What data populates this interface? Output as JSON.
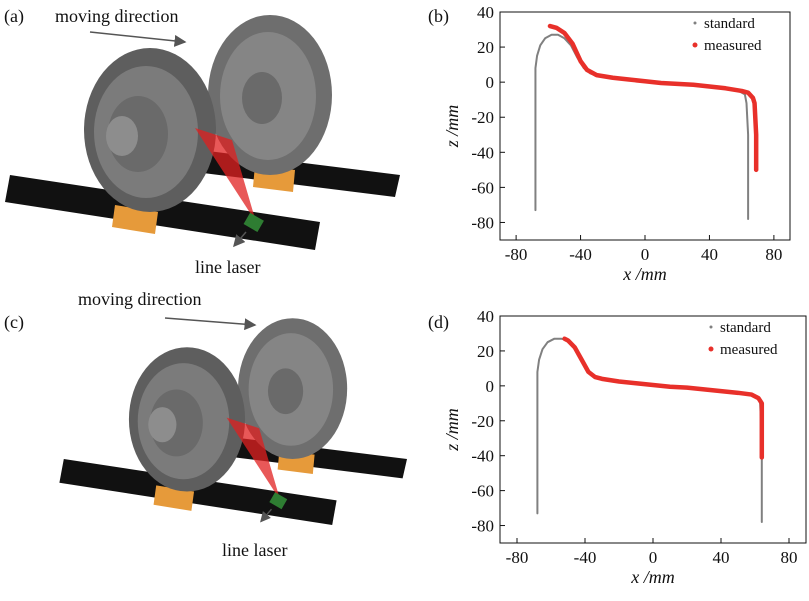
{
  "panels": [
    {
      "label": "(a)",
      "caption": "moving direction",
      "callout": "line laser"
    },
    {
      "label": "(c)",
      "caption": "moving direction",
      "callout": "line laser"
    }
  ],
  "chart_data": [
    {
      "type": "line",
      "label": "(b)",
      "xlabel": "x /mm",
      "ylabel": "z /mm",
      "xlim": [
        -90,
        90
      ],
      "ylim": [
        -90,
        40
      ],
      "xticks": [
        -80,
        -40,
        0,
        40,
        80
      ],
      "yticks": [
        -80,
        -60,
        -40,
        -20,
        0,
        20,
        40
      ],
      "legend": "upper right",
      "series": [
        {
          "name": "standard",
          "color": "#808080",
          "x": [
            -68,
            -68,
            -67,
            -65,
            -62,
            -58,
            -54,
            -50,
            -46,
            -42,
            -38,
            -34,
            -30,
            -20,
            -10,
            0,
            10,
            20,
            30,
            40,
            50,
            58,
            62,
            63,
            64,
            64
          ],
          "values": [
            -73,
            8,
            15,
            21,
            25,
            27,
            27,
            25,
            21,
            14,
            8,
            5,
            4,
            2.5,
            1.5,
            0.5,
            -0.5,
            -1,
            -2,
            -3,
            -4,
            -5,
            -7,
            -12,
            -30,
            -78
          ]
        },
        {
          "name": "measured",
          "color": "#e8302a",
          "x": [
            -59,
            -55,
            -50,
            -45,
            -42,
            -40,
            -36,
            -30,
            -20,
            -10,
            0,
            10,
            20,
            30,
            40,
            50,
            60,
            64,
            67,
            68,
            69,
            69
          ],
          "values": [
            32,
            31,
            28,
            22,
            16,
            12,
            7,
            4,
            2.5,
            1.5,
            0.5,
            -0.5,
            -1,
            -1.5,
            -2.5,
            -3.5,
            -5,
            -6,
            -9,
            -12,
            -30,
            -50
          ]
        }
      ]
    },
    {
      "type": "line",
      "label": "(d)",
      "xlabel": "x /mm",
      "ylabel": "z /mm",
      "xlim": [
        -90,
        90
      ],
      "ylim": [
        -90,
        40
      ],
      "xticks": [
        -80,
        -40,
        0,
        40,
        80
      ],
      "yticks": [
        -80,
        -60,
        -40,
        -20,
        0,
        20,
        40
      ],
      "legend": "upper right",
      "series": [
        {
          "name": "standard",
          "color": "#808080",
          "x": [
            -68,
            -68,
            -67,
            -65,
            -62,
            -58,
            -54,
            -50,
            -46,
            -42,
            -38,
            -34,
            -30,
            -20,
            -10,
            0,
            10,
            20,
            30,
            40,
            50,
            58,
            62,
            63,
            64,
            64
          ],
          "values": [
            -73,
            8,
            15,
            21,
            25,
            27,
            27,
            26,
            22,
            15,
            8,
            5,
            4,
            2.5,
            1.5,
            0.5,
            -0.5,
            -1,
            -2,
            -3,
            -4,
            -5,
            -7,
            -10,
            -30,
            -78
          ]
        },
        {
          "name": "measured",
          "color": "#e8302a",
          "x": [
            -52,
            -50,
            -46,
            -42,
            -38,
            -34,
            -30,
            -20,
            -10,
            0,
            10,
            20,
            30,
            40,
            50,
            58,
            62,
            64,
            64
          ],
          "values": [
            27,
            26,
            22,
            15,
            8,
            5,
            4,
            2.5,
            1.5,
            0.5,
            -0.5,
            -1,
            -2,
            -3,
            -4,
            -5,
            -7,
            -10,
            -41
          ]
        }
      ]
    }
  ]
}
